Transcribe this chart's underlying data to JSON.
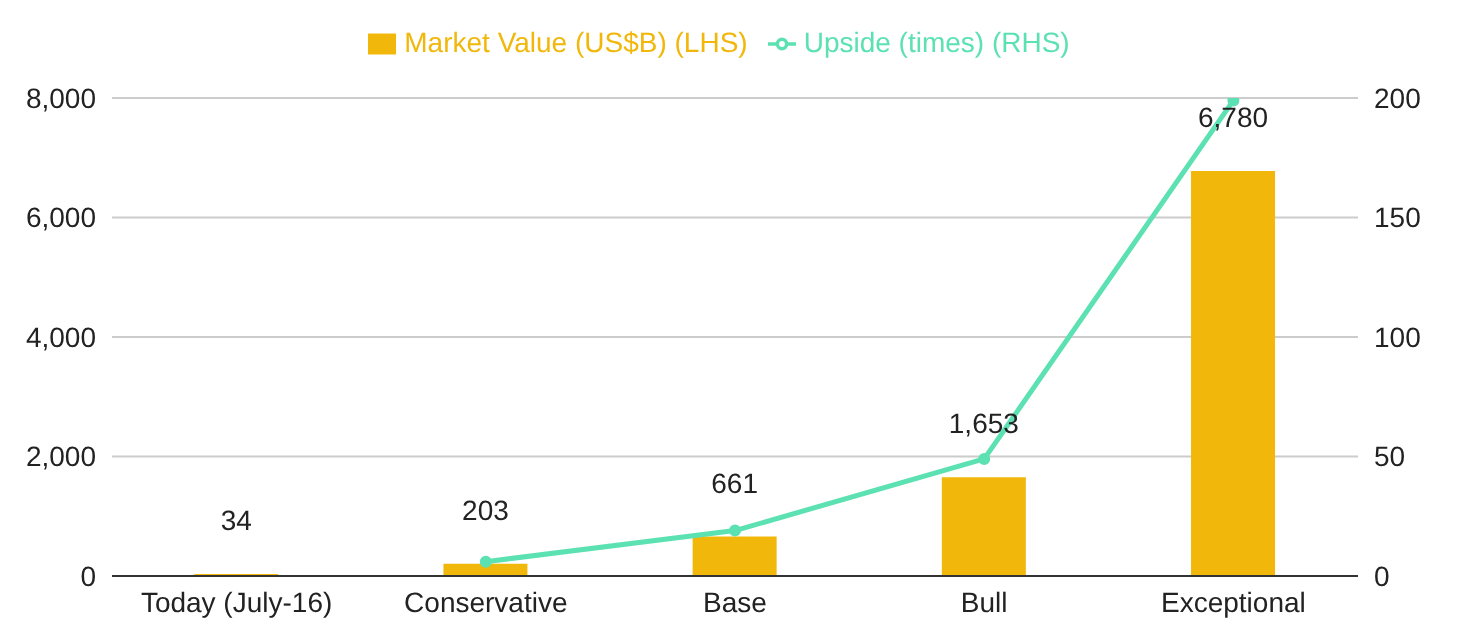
{
  "chart_data": {
    "type": "bar",
    "categories": [
      "Today (July-16)",
      "Conservative",
      "Base",
      "Bull",
      "Exceptional"
    ],
    "series": [
      {
        "name": "Market Value (US$B) (LHS)",
        "color": "#f1b70a",
        "values": [
          34,
          203,
          661,
          1653,
          6780
        ],
        "value_labels": [
          "34",
          "203",
          "661",
          "1,653",
          "6,780"
        ]
      },
      {
        "name": "Upside (times) (RHS)",
        "type": "line",
        "axis": "y2",
        "color": "#5ce1b2",
        "values": [
          null,
          6,
          19,
          49,
          199
        ],
        "marker": "circle"
      }
    ],
    "ylim": [
      0,
      8000
    ],
    "yticks": [
      0,
      {
        "value": 2000,
        "label": "2,000"
      },
      {
        "value": 4000,
        "label": "4,000"
      },
      {
        "value": 6000,
        "label": "6,000"
      },
      {
        "value": 8000,
        "label": "8,000"
      }
    ],
    "y2lim": [
      0,
      200
    ],
    "y2ticks": [
      0,
      50,
      100,
      150,
      200
    ],
    "grid": "y",
    "legend": "top"
  }
}
